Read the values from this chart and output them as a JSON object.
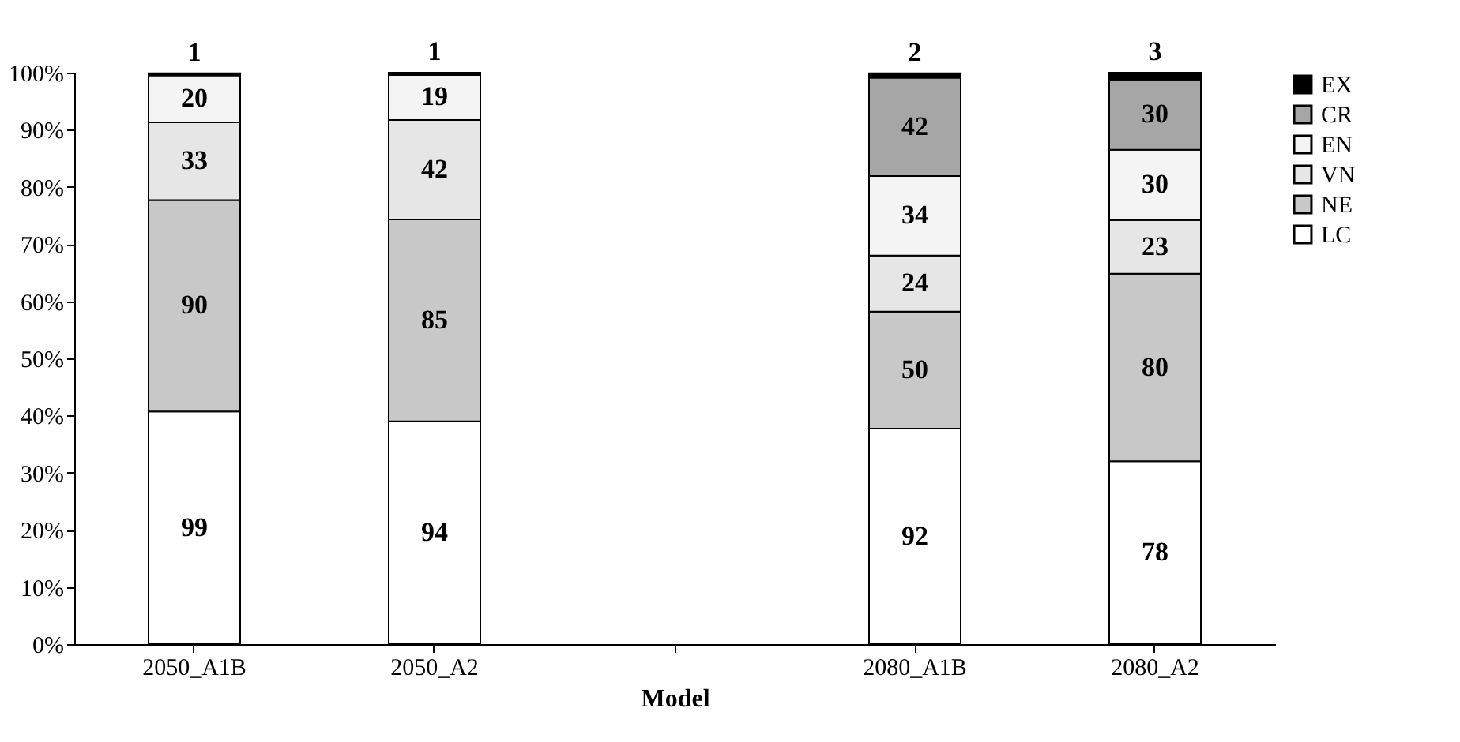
{
  "chart_data": {
    "type": "bar",
    "stacked": true,
    "xlabel": "Model",
    "categories": [
      "2050_A1B",
      "2050_A2",
      null,
      "2080_A1B",
      "2080_A2"
    ],
    "series": [
      {
        "name": "LC",
        "color": "#ffffff",
        "values": [
          40.7,
          39.0,
          null,
          37.7,
          32.0
        ]
      },
      {
        "name": "NE",
        "color": "#c8c8c8",
        "values": [
          37.0,
          35.3,
          null,
          20.5,
          32.8
        ]
      },
      {
        "name": "VN",
        "color": "#e6e6e6",
        "values": [
          13.6,
          17.4,
          null,
          9.8,
          9.4
        ]
      },
      {
        "name": "EN",
        "color": "#f4f4f4",
        "values": [
          8.2,
          7.9,
          null,
          13.9,
          12.3
        ]
      },
      {
        "name": "CR",
        "color": "#a6a6a6",
        "values": [
          0,
          0,
          null,
          17.2,
          12.3
        ]
      },
      {
        "name": "EX",
        "color": "#000000",
        "values": [
          0.4,
          0.4,
          null,
          0.8,
          1.2
        ]
      }
    ],
    "annotations": [
      "99",
      "90",
      "33",
      "20",
      "1",
      "94",
      "85",
      "42",
      "19",
      "1",
      "92",
      "50",
      "24",
      "34",
      "42",
      "2",
      "78",
      "80",
      "23",
      "30",
      "30",
      "3"
    ],
    "ylim": [
      0,
      100
    ],
    "yticks": [
      {
        "value": 0,
        "label": "0%"
      },
      {
        "value": 10,
        "label": "10%"
      },
      {
        "value": 20,
        "label": "20%"
      },
      {
        "value": 30,
        "label": "30%"
      },
      {
        "value": 40,
        "label": "40%"
      },
      {
        "value": 50,
        "label": "50%"
      },
      {
        "value": 60,
        "label": "60%"
      },
      {
        "value": 70,
        "label": "70%"
      },
      {
        "value": 80,
        "label": "80%"
      },
      {
        "value": 90,
        "label": "90%"
      },
      {
        "value": 100,
        "label": "100%"
      }
    ],
    "grid": false,
    "legend": "right"
  }
}
